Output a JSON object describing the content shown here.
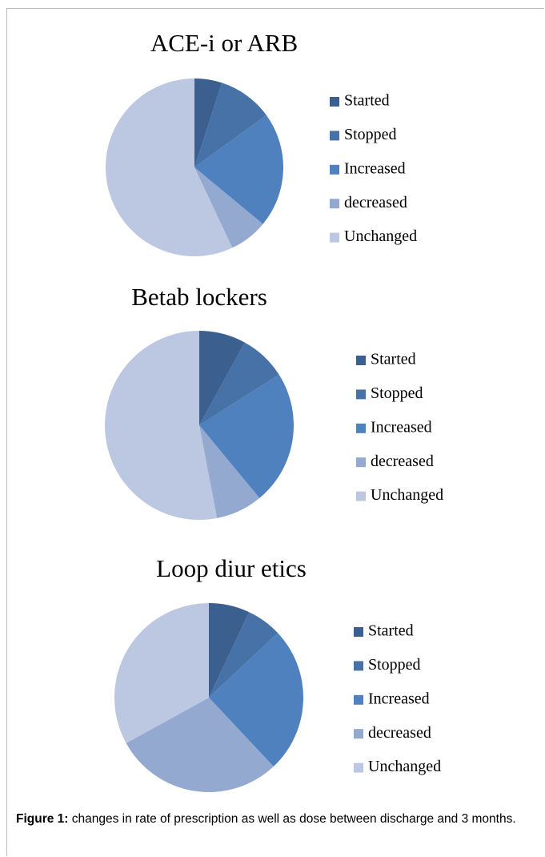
{
  "chart_data": [
    {
      "type": "pie",
      "title": "ACE-i or ARB",
      "categories": [
        "Started",
        "Stopped",
        "Increased",
        "decreased",
        "Unchanged"
      ],
      "values": [
        5,
        10,
        21,
        7,
        57
      ],
      "colors": [
        "#3b5f8f",
        "#4672a8",
        "#4e81bd",
        "#94a9d0",
        "#bcc8e1"
      ]
    },
    {
      "type": "pie",
      "title": "Betab lockers",
      "categories": [
        "Started",
        "Stopped",
        "Increased",
        "decreased",
        "Unchanged"
      ],
      "values": [
        8,
        8,
        23,
        8,
        53
      ],
      "colors": [
        "#3b5f8f",
        "#4672a8",
        "#4e81bd",
        "#94a9d0",
        "#bcc8e1"
      ]
    },
    {
      "type": "pie",
      "title": "Loop diur etics",
      "categories": [
        "Started",
        "Stopped",
        "Increased",
        "decreased",
        "Unchanged"
      ],
      "values": [
        7,
        6,
        25,
        29,
        33
      ],
      "colors": [
        "#3b5f8f",
        "#4672a8",
        "#4e81bd",
        "#94a9d0",
        "#bcc8e1"
      ]
    }
  ],
  "caption": {
    "label": "Figure 1:",
    "text": "changes in rate of prescription as well as dose between discharge and 3 months."
  }
}
